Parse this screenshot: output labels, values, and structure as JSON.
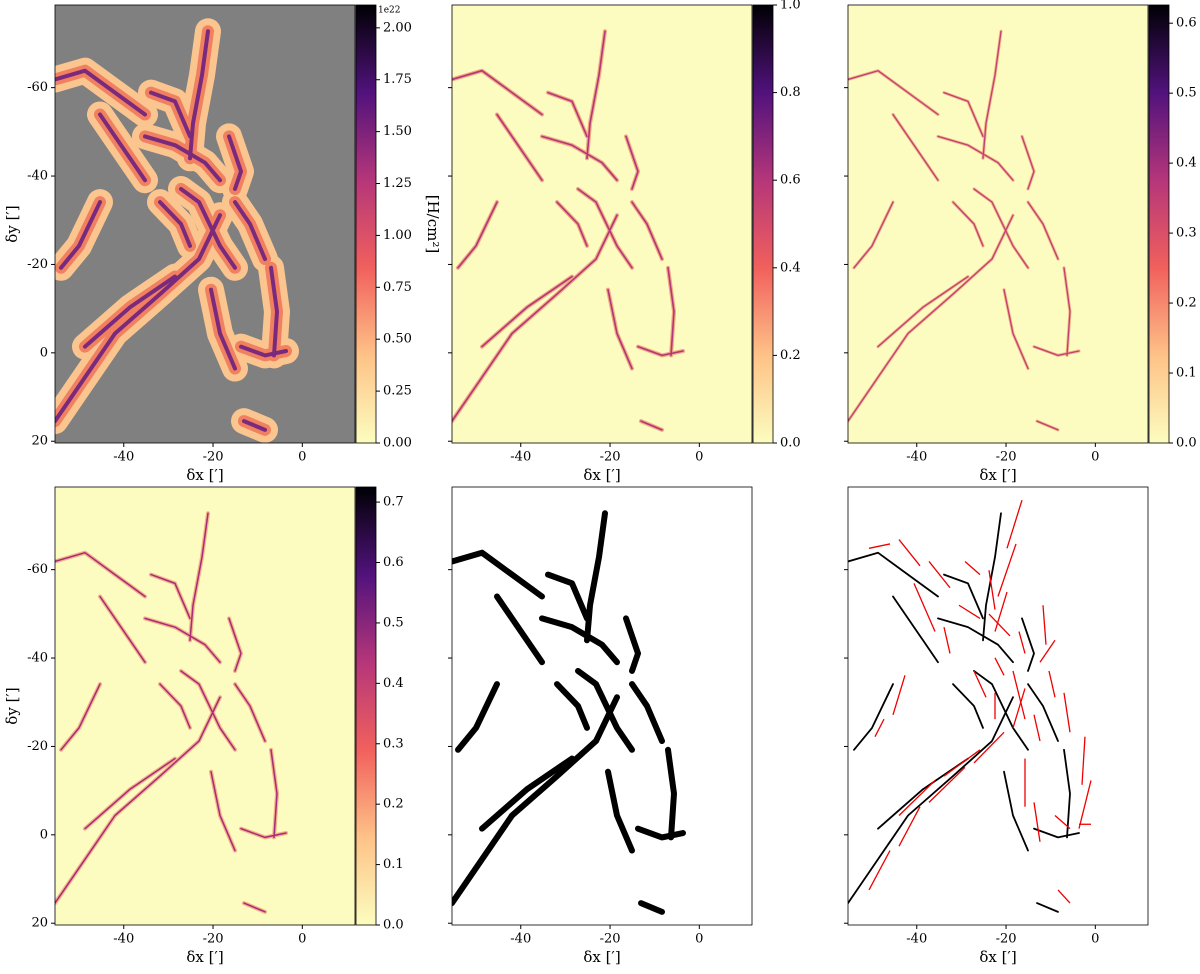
{
  "chart_data": [
    {
      "type": "image",
      "xlabel": "δx [′]",
      "ylabel": "δy [′]",
      "xlim": [
        -55.4,
        11.8
      ],
      "ylim": [
        -78.7,
        20.4
      ],
      "xticks": [
        -40,
        -20,
        0
      ],
      "yticks": [
        -60,
        -40,
        -20,
        0,
        20
      ],
      "yticklabels": true,
      "colorbar": {
        "clim": [
          0,
          2.11
        ],
        "label": "[H/cm²]",
        "offset": "1e22",
        "ticks": [
          {
            "value": 0,
            "label": "0.00"
          },
          {
            "value": 0.25,
            "label": "0.25"
          },
          {
            "value": 0.5,
            "label": "0.50"
          },
          {
            "value": 0.75,
            "label": "0.75"
          },
          {
            "value": 1,
            "label": "1.00"
          },
          {
            "value": 1.25,
            "label": "1.25"
          },
          {
            "value": 1.5,
            "label": "1.50"
          },
          {
            "value": 1.75,
            "label": "1.75"
          },
          {
            "value": 2,
            "label": "2.00"
          }
        ]
      }
    },
    {
      "type": "image",
      "xlabel": "δx [′]",
      "xlim": [
        -55.4,
        11.8
      ],
      "ylim": [
        -78.7,
        20.4
      ],
      "xticks": [
        -40,
        -20,
        0
      ],
      "yticks": [
        -60,
        -40,
        -20,
        0,
        20
      ],
      "yticklabels": false,
      "colorbar": {
        "clim": [
          0,
          1
        ],
        "ticks": [
          {
            "value": 0,
            "label": "0.0"
          },
          0.2,
          0.4,
          0.6,
          0.8,
          {
            "value": 1,
            "label": "1.0"
          }
        ]
      }
    },
    {
      "type": "image",
      "xlabel": "δx [′]",
      "xlim": [
        -55.4,
        11.8
      ],
      "ylim": [
        -78.7,
        20.4
      ],
      "xticks": [
        -40,
        -20,
        0
      ],
      "yticks": [
        -60,
        -40,
        -20,
        0,
        20
      ],
      "yticklabels": false,
      "colorbar": {
        "clim": [
          0,
          0.626
        ],
        "ticks": [
          {
            "value": 0,
            "label": "0.0"
          },
          0.1,
          0.2,
          0.3,
          0.4,
          0.5,
          0.6
        ]
      }
    },
    {
      "type": "image",
      "xlabel": "δx [′]",
      "ylabel": "δy [′]",
      "xlim": [
        -55.4,
        11.8
      ],
      "ylim": [
        -78.7,
        20.4
      ],
      "xticks": [
        -40,
        -20,
        0
      ],
      "yticks": [
        -60,
        -40,
        -20,
        0,
        20
      ],
      "yticklabels": true,
      "colorbar": {
        "clim": [
          0,
          0.725
        ],
        "ticks": [
          {
            "value": 0,
            "label": "0.0"
          },
          0.1,
          0.2,
          0.3,
          0.4,
          0.5,
          0.6,
          0.7
        ]
      }
    },
    {
      "type": "image",
      "xlabel": "δx [′]",
      "xlim": [
        -55.4,
        11.8
      ],
      "ylim": [
        -78.7,
        20.4
      ],
      "xticks": [
        -40,
        -20,
        0
      ],
      "yticks": [
        -60,
        -40,
        -20,
        0,
        20
      ],
      "yticklabels": false
    },
    {
      "type": "image",
      "xlabel": "δx [′]",
      "xlim": [
        -55.4,
        11.8
      ],
      "ylim": [
        -78.7,
        20.4
      ],
      "xticks": [
        -40,
        -20,
        0
      ],
      "yticks": [
        -60,
        -40,
        -20,
        0,
        20
      ],
      "yticklabels": false
    }
  ]
}
